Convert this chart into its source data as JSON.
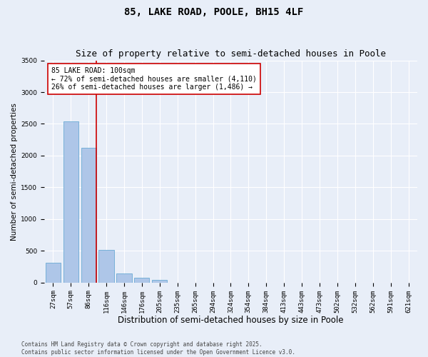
{
  "title": "85, LAKE ROAD, POOLE, BH15 4LF",
  "subtitle": "Size of property relative to semi-detached houses in Poole",
  "xlabel": "Distribution of semi-detached houses by size in Poole",
  "ylabel": "Number of semi-detached properties",
  "categories": [
    "27sqm",
    "57sqm",
    "86sqm",
    "116sqm",
    "146sqm",
    "176sqm",
    "205sqm",
    "235sqm",
    "265sqm",
    "294sqm",
    "324sqm",
    "354sqm",
    "384sqm",
    "413sqm",
    "443sqm",
    "473sqm",
    "502sqm",
    "532sqm",
    "562sqm",
    "591sqm",
    "621sqm"
  ],
  "values": [
    310,
    2540,
    2120,
    520,
    150,
    75,
    40,
    0,
    0,
    0,
    0,
    0,
    0,
    0,
    0,
    0,
    0,
    0,
    0,
    0,
    0
  ],
  "bar_color": "#aec6e8",
  "bar_edge_color": "#6aaad4",
  "vline_color": "#cc0000",
  "annotation_text": "85 LAKE ROAD: 100sqm\n← 72% of semi-detached houses are smaller (4,110)\n26% of semi-detached houses are larger (1,486) →",
  "annotation_box_facecolor": "#ffffff",
  "annotation_box_edgecolor": "#cc0000",
  "ylim": [
    0,
    3500
  ],
  "yticks": [
    0,
    500,
    1000,
    1500,
    2000,
    2500,
    3000,
    3500
  ],
  "background_color": "#e8eef8",
  "grid_color": "#ffffff",
  "footer": "Contains HM Land Registry data © Crown copyright and database right 2025.\nContains public sector information licensed under the Open Government Licence v3.0.",
  "title_fontsize": 10,
  "subtitle_fontsize": 9,
  "xlabel_fontsize": 8.5,
  "ylabel_fontsize": 7.5,
  "tick_fontsize": 6.5,
  "annot_fontsize": 7,
  "footer_fontsize": 5.5
}
